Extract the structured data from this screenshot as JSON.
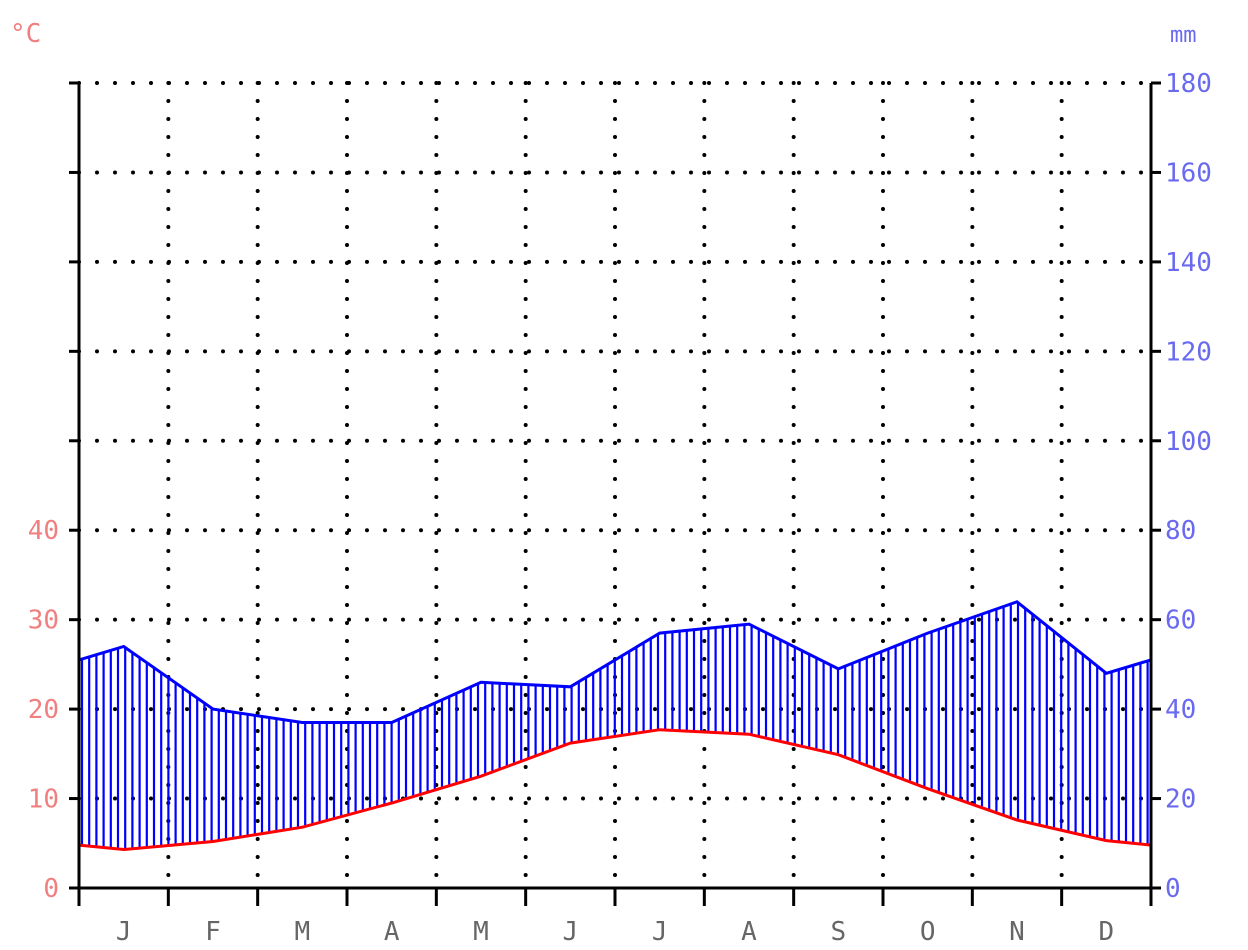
{
  "chart_data": {
    "type": "area",
    "units": {
      "temperature": "°C",
      "precipitation": "mm"
    },
    "months": [
      "J",
      "F",
      "M",
      "A",
      "M",
      "J",
      "J",
      "A",
      "S",
      "O",
      "N",
      "D"
    ],
    "temperature_ticks": [
      "0",
      "10",
      "20",
      "30",
      "40"
    ],
    "precipitation_ticks": [
      "0",
      "20",
      "40",
      "60",
      "80",
      "100",
      "120",
      "140",
      "160",
      "180"
    ],
    "temperature_range": [
      0,
      90
    ],
    "precipitation_range": [
      0,
      180
    ],
    "series": [
      {
        "values": [
          4.3,
          5.2,
          6.8,
          9.5,
          12.5,
          16.2,
          17.7,
          17.2,
          14.9,
          11.1,
          7.6,
          5.3
        ]
      },
      {
        "values": [
          54,
          40,
          37,
          37,
          46,
          45,
          57,
          59,
          49,
          57,
          64,
          48
        ]
      }
    ],
    "grid": true,
    "colors": {
      "temperature": "#ff0000",
      "precipitation": "#0000ff",
      "temperature_labels": "#f08080",
      "precipitation_labels": "#6a6af0",
      "axis": "#000000"
    }
  }
}
